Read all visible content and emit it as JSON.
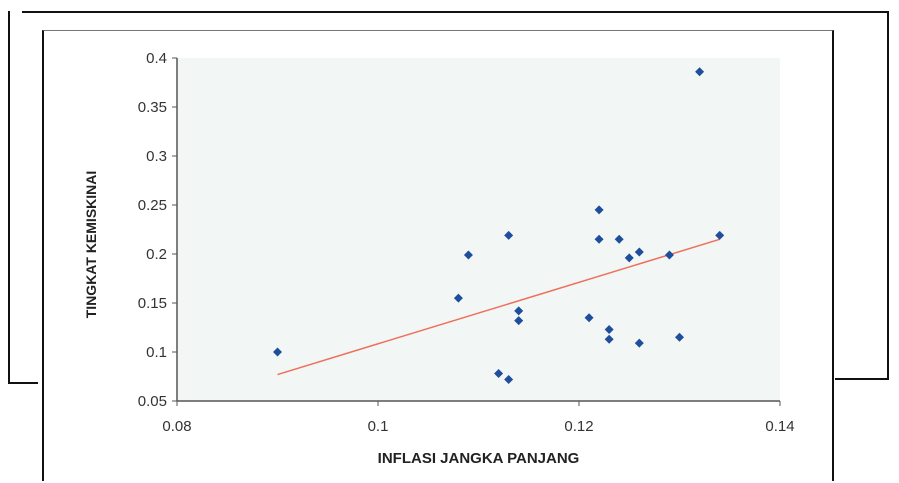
{
  "chart_data": {
    "type": "scatter",
    "title": "",
    "xlabel": "INFLASI JANGKA PANJANG",
    "ylabel": "TINGKAT KEMISKINAI",
    "xlim": [
      0.08,
      0.14
    ],
    "ylim": [
      0.05,
      0.4
    ],
    "xticks": [
      "0.08",
      "0.1",
      "0.12",
      "0.14"
    ],
    "yticks": [
      "0.05",
      "0.1",
      "0.15",
      "0.2",
      "0.25",
      "0.3",
      "0.35",
      "0.4"
    ],
    "grid": false,
    "legend": "none",
    "series": [
      {
        "x": [
          0.09,
          0.108,
          0.109,
          0.112,
          0.113,
          0.113,
          0.114,
          0.114,
          0.121,
          0.122,
          0.122,
          0.123,
          0.123,
          0.124,
          0.125,
          0.126,
          0.126,
          0.129,
          0.13,
          0.132,
          0.134
        ],
        "y": [
          0.1,
          0.155,
          0.199,
          0.078,
          0.072,
          0.219,
          0.142,
          0.132,
          0.135,
          0.245,
          0.215,
          0.123,
          0.113,
          0.215,
          0.196,
          0.202,
          0.109,
          0.199,
          0.115,
          0.386,
          0.219
        ]
      }
    ],
    "trendline": {
      "x": [
        0.09,
        0.134
      ],
      "y": [
        0.077,
        0.215
      ]
    },
    "colors": {
      "marker": "#1f4e9c",
      "trendline": "#ef6f5a",
      "plot_background": "#f2f6f4"
    }
  }
}
